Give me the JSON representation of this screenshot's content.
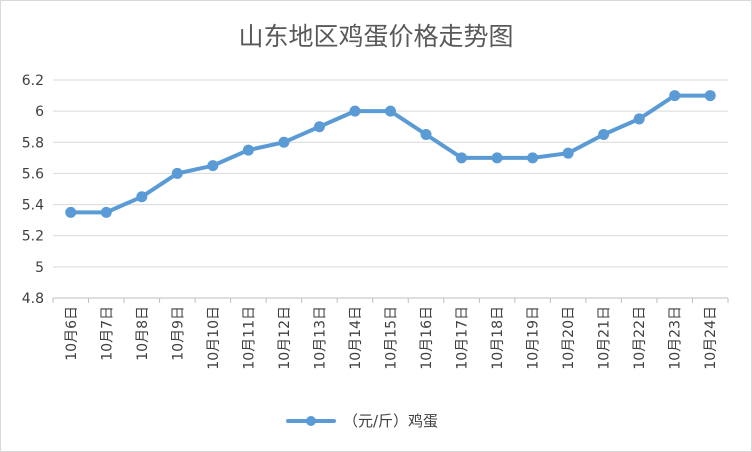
{
  "chart_data": {
    "type": "line",
    "title": "山东地区鸡蛋价格走势图",
    "categories": [
      "10月6日",
      "10月7日",
      "10月8日",
      "10月9日",
      "10月10日",
      "10月11日",
      "10月12日",
      "10月13日",
      "10月14日",
      "10月15日",
      "10月16日",
      "10月17日",
      "10月18日",
      "10月19日",
      "10月20日",
      "10月21日",
      "10月22日",
      "10月23日",
      "10月24日"
    ],
    "series": [
      {
        "name": "（元/斤）鸡蛋",
        "values": [
          5.35,
          5.35,
          5.45,
          5.6,
          5.65,
          5.75,
          5.8,
          5.9,
          6.0,
          6.0,
          5.85,
          5.7,
          5.7,
          5.7,
          5.73,
          5.85,
          5.95,
          6.1,
          6.1
        ],
        "color": "#5b9bd5"
      }
    ],
    "ylim": [
      4.8,
      6.2
    ],
    "yticks": [
      "4.8",
      "5",
      "5.2",
      "5.4",
      "5.6",
      "5.8",
      "6",
      "6.2"
    ],
    "ytick_values": [
      4.8,
      5.0,
      5.2,
      5.4,
      5.6,
      5.8,
      6.0,
      6.2
    ],
    "grid": true,
    "legend_position": "bottom"
  }
}
